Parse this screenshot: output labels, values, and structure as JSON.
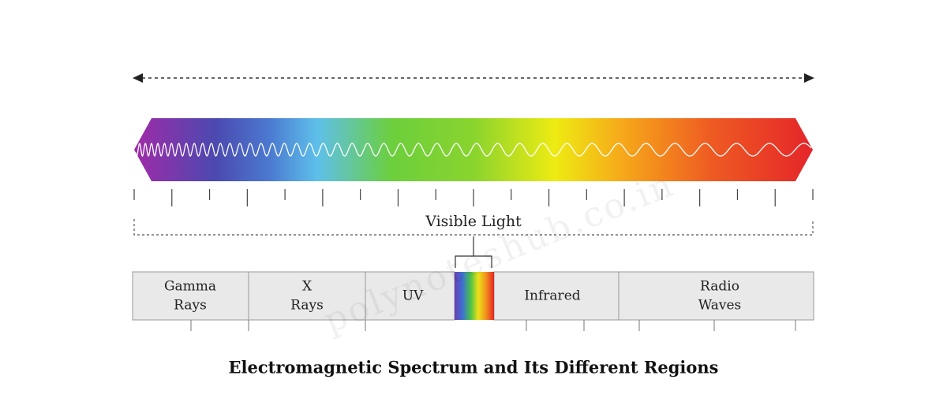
{
  "watermark": "polynoteshub.co.in",
  "visible_label": "Visible Light",
  "regions": [
    {
      "lines": [
        "Gamma",
        "Rays"
      ]
    },
    {
      "lines": [
        "X",
        "Rays"
      ]
    },
    {
      "lines": [
        "UV"
      ]
    },
    {
      "lines": [
        "Infrared"
      ]
    },
    {
      "lines": [
        "Radio",
        "Waves"
      ]
    }
  ],
  "caption": "Electromagnetic Spectrum and Its Different Regions"
}
